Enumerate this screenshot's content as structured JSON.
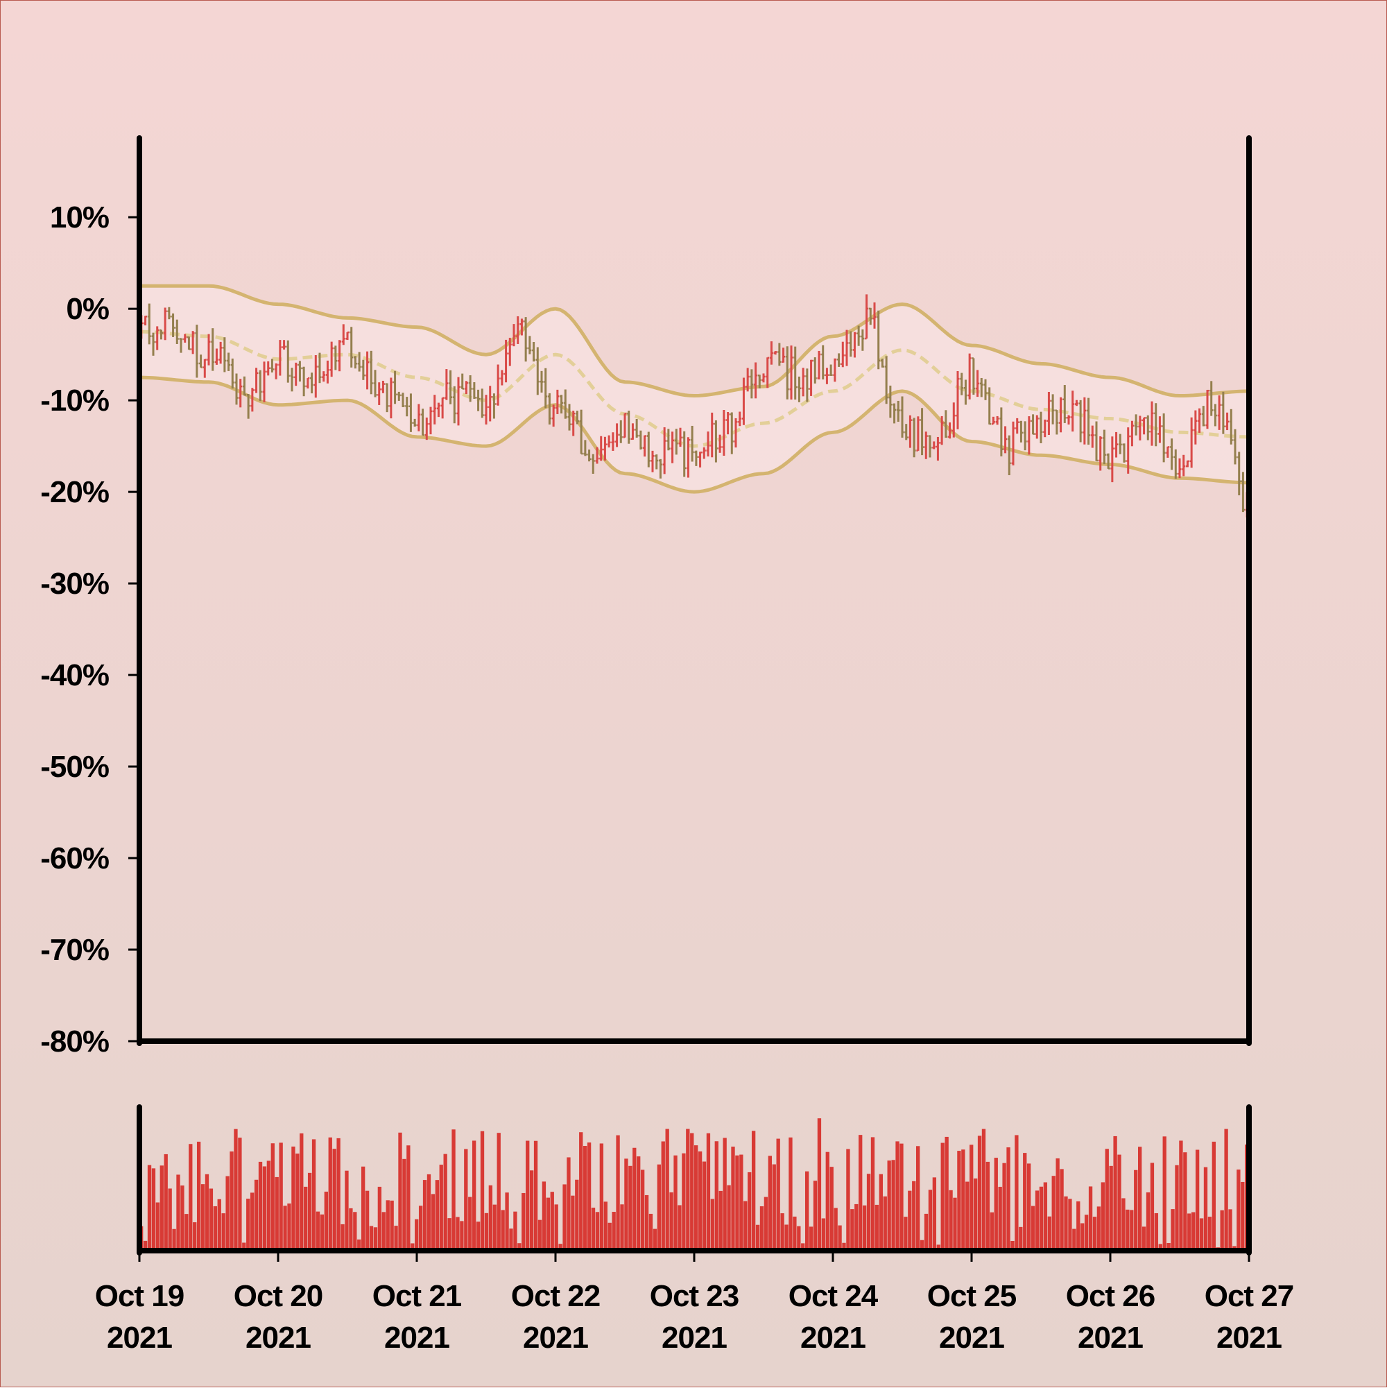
{
  "chart_data": {
    "type": "ohlc",
    "title": "",
    "xlabel": "",
    "ylabel": "",
    "ylim": [
      -80,
      18.5
    ],
    "y_ticks": [
      {
        "value": 10,
        "label": "10%"
      },
      {
        "value": 0,
        "label": "0%"
      },
      {
        "value": -10,
        "label": "-10%"
      },
      {
        "value": -20,
        "label": "-20%"
      },
      {
        "value": -30,
        "label": "-30%"
      },
      {
        "value": -40,
        "label": "-40%"
      },
      {
        "value": -50,
        "label": "-50%"
      },
      {
        "value": -60,
        "label": "-60%"
      },
      {
        "value": -70,
        "label": "-70%"
      },
      {
        "value": -80,
        "label": "-80%"
      }
    ],
    "x_range": [
      "2021-10-19",
      "2021-10-27"
    ],
    "x_ticks": [
      {
        "date": "2021-10-19",
        "line1": "Oct 19",
        "line2": "2021"
      },
      {
        "date": "2021-10-20",
        "line1": "Oct 20",
        "line2": "2021"
      },
      {
        "date": "2021-10-21",
        "line1": "Oct 21",
        "line2": "2021"
      },
      {
        "date": "2021-10-22",
        "line1": "Oct 22",
        "line2": "2021"
      },
      {
        "date": "2021-10-23",
        "line1": "Oct 23",
        "line2": "2021"
      },
      {
        "date": "2021-10-24",
        "line1": "Oct 24",
        "line2": "2021"
      },
      {
        "date": "2021-10-25",
        "line1": "Oct 25",
        "line2": "2021"
      },
      {
        "date": "2021-10-26",
        "line1": "Oct 26",
        "line2": "2021"
      },
      {
        "date": "2021-10-27",
        "line1": "Oct 27",
        "line2": "2021"
      }
    ],
    "close_path": [
      [
        "2021-10-19",
        -2.5
      ],
      [
        "2021-10-19 06:00",
        -1.5
      ],
      [
        "2021-10-19 12:00",
        -5
      ],
      [
        "2021-10-19 18:00",
        -9
      ],
      [
        "2021-10-20 00:00",
        -5.5
      ],
      [
        "2021-10-20 06:00",
        -8
      ],
      [
        "2021-10-20 12:00",
        -4
      ],
      [
        "2021-10-20 18:00",
        -8.5
      ],
      [
        "2021-10-21 00:00",
        -12
      ],
      [
        "2021-10-21 06:00",
        -9.5
      ],
      [
        "2021-10-21 12:00",
        -10
      ],
      [
        "2021-10-21 18:00",
        -2
      ],
      [
        "2021-10-22 00:00",
        -11
      ],
      [
        "2021-10-22 06:00",
        -15.5
      ],
      [
        "2021-10-22 12:00",
        -12.5
      ],
      [
        "2021-10-22 18:00",
        -16
      ],
      [
        "2021-10-23 00:00",
        -15.5
      ],
      [
        "2021-10-23 06:00",
        -13
      ],
      [
        "2021-10-23 12:00",
        -6.5
      ],
      [
        "2021-10-23 18:00",
        -7
      ],
      [
        "2021-10-24 00:00",
        -6
      ],
      [
        "2021-10-24 06:00",
        -1
      ],
      [
        "2021-10-24 12:00",
        -13.5
      ],
      [
        "2021-10-24 18:00",
        -13.5
      ],
      [
        "2021-10-25 00:00",
        -7
      ],
      [
        "2021-10-25 06:00",
        -15
      ],
      [
        "2021-10-25 12:00",
        -12
      ],
      [
        "2021-10-25 18:00",
        -11.5
      ],
      [
        "2021-10-26 00:00",
        -17
      ],
      [
        "2021-10-26 06:00",
        -13
      ],
      [
        "2021-10-26 12:00",
        -16.5
      ],
      [
        "2021-10-26 18:00",
        -10
      ],
      [
        "2021-10-27 00:00",
        -21.5
      ]
    ],
    "bollinger": {
      "x": [
        "2021-10-19 00:00",
        "2021-10-19 12:00",
        "2021-10-20 00:00",
        "2021-10-20 12:00",
        "2021-10-21 00:00",
        "2021-10-21 12:00",
        "2021-10-22 00:00",
        "2021-10-22 12:00",
        "2021-10-23 00:00",
        "2021-10-23 12:00",
        "2021-10-24 00:00",
        "2021-10-24 12:00",
        "2021-10-25 00:00",
        "2021-10-25 12:00",
        "2021-10-26 00:00",
        "2021-10-26 12:00",
        "2021-10-27 00:00"
      ],
      "upper": [
        2.5,
        2.5,
        0.5,
        -1,
        -2,
        -5,
        0,
        -8,
        -9.5,
        -8.5,
        -3,
        0.5,
        -4,
        -6,
        -7.5,
        -9.5,
        -9
      ],
      "middle": [
        -2.5,
        -3,
        -5.5,
        -5,
        -7.5,
        -10,
        -5,
        -11.5,
        -15,
        -12.5,
        -9,
        -4.5,
        -9,
        -11,
        -12,
        -13.5,
        -14
      ],
      "lower": [
        -7.5,
        -8,
        -10.5,
        -10,
        -14,
        -15,
        -10.5,
        -18,
        -20,
        -18,
        -13.5,
        -9,
        -14.5,
        -16,
        -17,
        -18.5,
        -19
      ]
    },
    "volume_range": [
      0,
      100
    ],
    "colors": {
      "up": "#d94a48",
      "down": "#947f4e",
      "band": "#d4b470",
      "middle": "#e3cf98",
      "band_fill": "#f8e2e2",
      "volume": "#d83a35",
      "axis": "#000000"
    }
  }
}
